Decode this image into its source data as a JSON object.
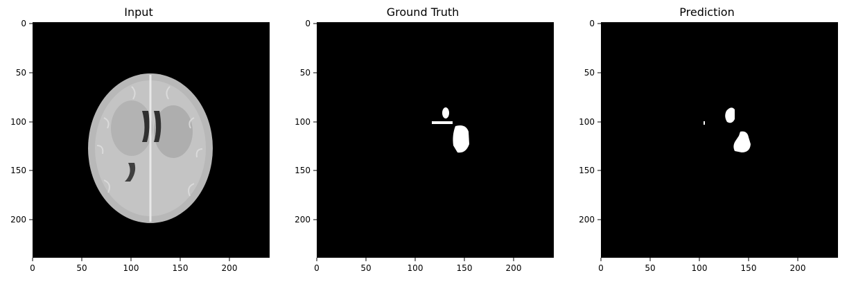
{
  "panels": [
    {
      "title": "Input",
      "x_ticks": [
        "0",
        "50",
        "100",
        "150",
        "200"
      ],
      "y_ticks": [
        "0",
        "50",
        "100",
        "150",
        "200"
      ]
    },
    {
      "title": "Ground Truth",
      "x_ticks": [
        "0",
        "50",
        "100",
        "150",
        "200"
      ],
      "y_ticks": [
        "0",
        "50",
        "100",
        "150",
        "200"
      ]
    },
    {
      "title": "Prediction",
      "x_ticks": [
        "0",
        "50",
        "100",
        "150",
        "200"
      ],
      "y_ticks": [
        "0",
        "50",
        "100",
        "150",
        "200"
      ]
    }
  ],
  "image_size": [
    240,
    240
  ],
  "tick_values": [
    0,
    50,
    100,
    150,
    200
  ],
  "colors": {
    "background": "#000000",
    "mask": "#ffffff",
    "tissue": "#bdbdbd"
  }
}
